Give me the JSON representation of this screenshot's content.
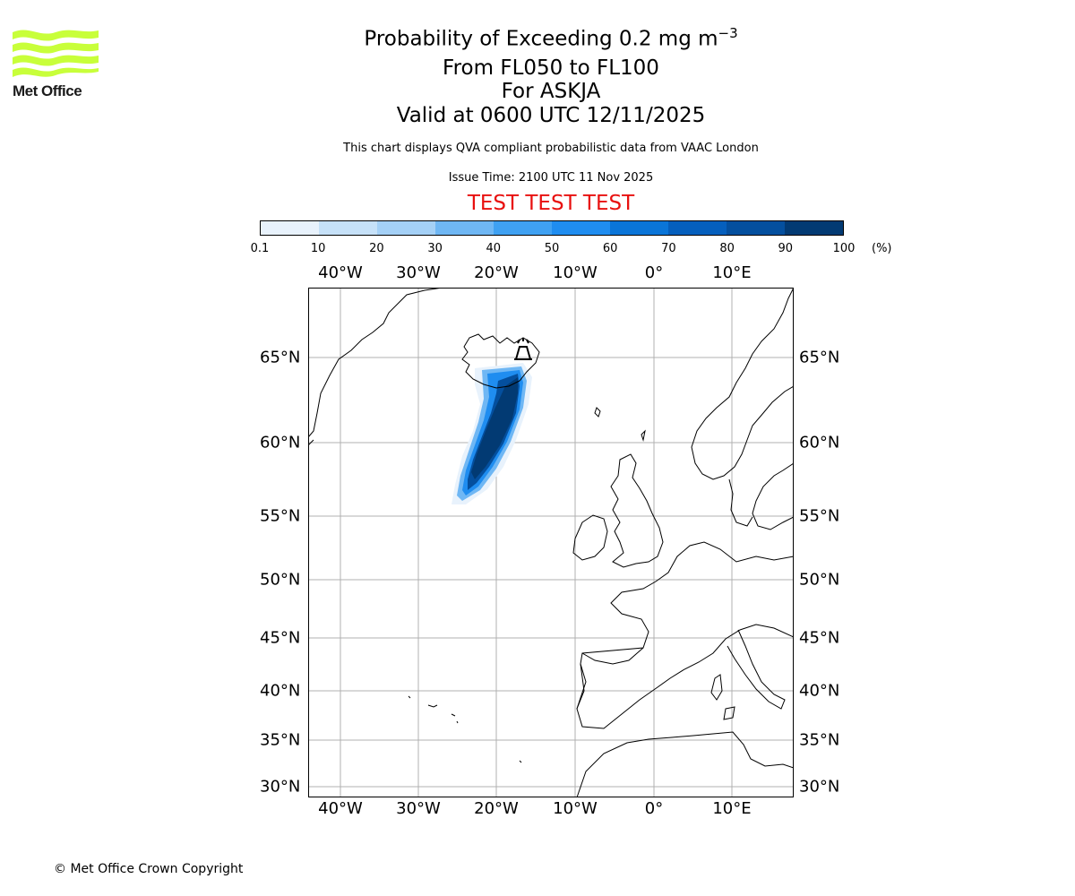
{
  "logo": {
    "brand": "Met Office",
    "color": "#c8ff3a"
  },
  "title": {
    "main": "Probability of Exceeding 0.2 mg m",
    "main_sup": "−3",
    "level_range": "From FL050 to FL100",
    "volcano": "For ASKJA",
    "valid_time": "Valid at 0600 UTC 12/11/2025"
  },
  "description": "This chart displays QVA compliant probabilistic data from VAAC London",
  "issue_time": "Issue Time: 2100 UTC 11 Nov 2025",
  "test_banner": "TEST TEST TEST",
  "test_color": "#e8100f",
  "colorbar": {
    "ticks": [
      "0.1",
      "10",
      "20",
      "30",
      "40",
      "50",
      "60",
      "70",
      "80",
      "90",
      "100"
    ],
    "unit": "(%)",
    "colors": [
      "#e8f2fc",
      "#c6e1f8",
      "#a4d0f6",
      "#6fb7f4",
      "#3fa1f2",
      "#1f8df0",
      "#0a75d8",
      "#055fbd",
      "#044f9e",
      "#023a73"
    ]
  },
  "map": {
    "lon_labels": [
      "40°W",
      "30°W",
      "20°W",
      "10°W",
      "0°",
      "10°E"
    ],
    "lat_labels": [
      "65°N",
      "60°N",
      "55°N",
      "50°N",
      "45°N",
      "40°N",
      "35°N",
      "30°N"
    ],
    "gridline_color": "#b0b0b0",
    "volcano_marker": "volcano-icon"
  },
  "copyright": "© Met Office Crown Copyright"
}
